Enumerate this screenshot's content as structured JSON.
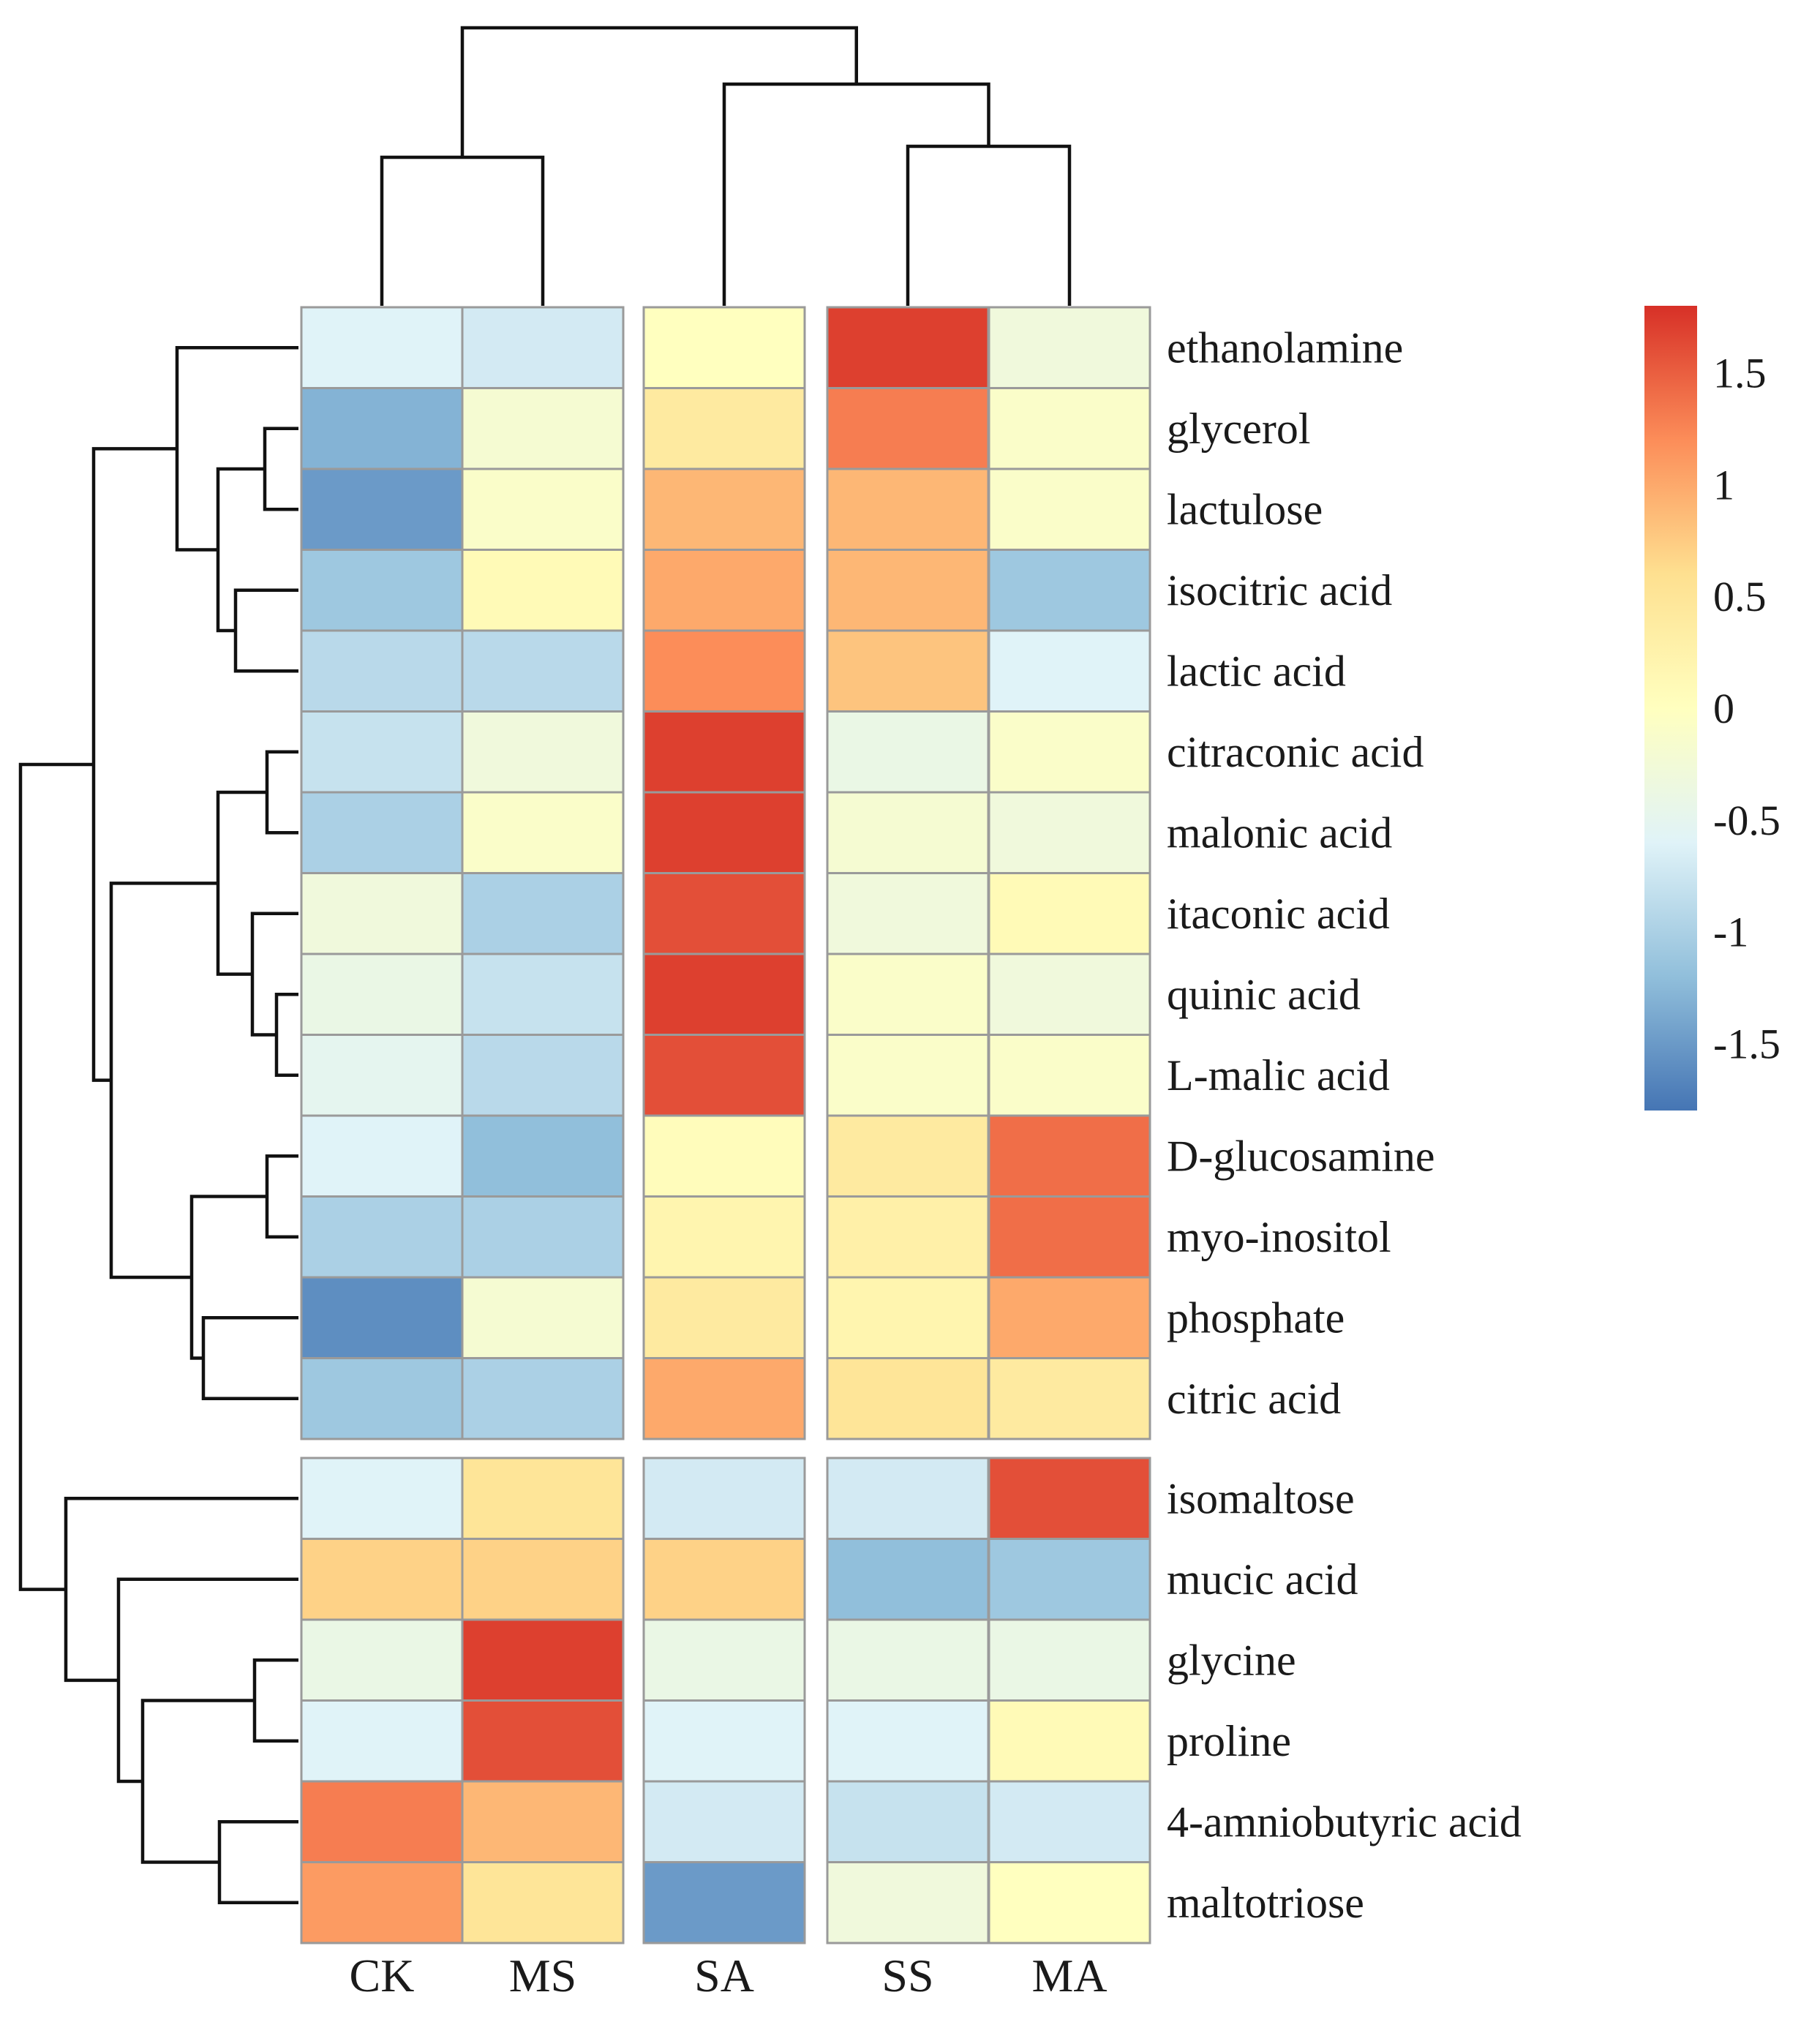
{
  "chart_data": {
    "type": "heatmap",
    "title": "",
    "columns": [
      "CK",
      "MS",
      "SA",
      "SS",
      "MA"
    ],
    "column_groups": [
      [
        "CK",
        "MS"
      ],
      [
        "SA"
      ],
      [
        "SS",
        "MA"
      ]
    ],
    "row_groups": [
      14,
      6
    ],
    "rows": [
      {
        "name": "ethanolamine",
        "values": [
          -0.6,
          -0.7,
          0.0,
          1.7,
          -0.3
        ]
      },
      {
        "name": "glycerol",
        "values": [
          -1.3,
          -0.2,
          0.4,
          1.3,
          -0.1
        ]
      },
      {
        "name": "lactulose",
        "values": [
          -1.5,
          -0.1,
          0.9,
          0.9,
          -0.1
        ]
      },
      {
        "name": "isocitric acid",
        "values": [
          -1.1,
          0.1,
          1.0,
          0.9,
          -1.1
        ]
      },
      {
        "name": "lactic acid",
        "values": [
          -0.9,
          -0.9,
          1.2,
          0.8,
          -0.6
        ]
      },
      {
        "name": "citraconic acid",
        "values": [
          -0.8,
          -0.3,
          1.7,
          -0.4,
          -0.1
        ]
      },
      {
        "name": "malonic acid",
        "values": [
          -1.0,
          -0.1,
          1.7,
          -0.2,
          -0.3
        ]
      },
      {
        "name": "itaconic acid",
        "values": [
          -0.3,
          -1.0,
          1.6,
          -0.3,
          0.1
        ]
      },
      {
        "name": "quinic acid",
        "values": [
          -0.4,
          -0.8,
          1.7,
          -0.1,
          -0.3
        ]
      },
      {
        "name": "L-malic acid",
        "values": [
          -0.5,
          -0.9,
          1.6,
          -0.1,
          -0.1
        ]
      },
      {
        "name": "D-glucosamine",
        "values": [
          -0.6,
          -1.2,
          0.05,
          0.4,
          1.4
        ]
      },
      {
        "name": "myo-inositol",
        "values": [
          -1.0,
          -1.0,
          0.2,
          0.3,
          1.4
        ]
      },
      {
        "name": "phosphate",
        "values": [
          -1.6,
          -0.2,
          0.4,
          0.2,
          1.0
        ]
      },
      {
        "name": "citric acid",
        "values": [
          -1.1,
          -1.0,
          1.0,
          0.5,
          0.4
        ]
      },
      {
        "name": "isomaltose",
        "values": [
          -0.6,
          0.5,
          -0.7,
          -0.7,
          1.6
        ]
      },
      {
        "name": "mucic acid",
        "values": [
          0.7,
          0.7,
          0.7,
          -1.2,
          -1.1
        ]
      },
      {
        "name": "glycine",
        "values": [
          -0.4,
          1.7,
          -0.4,
          -0.4,
          -0.4
        ]
      },
      {
        "name": "proline",
        "values": [
          -0.6,
          1.6,
          -0.6,
          -0.6,
          0.1
        ]
      },
      {
        "name": "4-amniobutyric acid",
        "values": [
          1.3,
          0.9,
          -0.7,
          -0.8,
          -0.7
        ]
      },
      {
        "name": "maltotriose",
        "values": [
          1.1,
          0.5,
          -1.5,
          -0.3,
          0.0
        ]
      }
    ],
    "colorbar": {
      "min": -1.8,
      "max": 1.8,
      "ticks": [
        1.5,
        1,
        0.5,
        0,
        -0.5,
        -1,
        -1.5
      ],
      "tick_labels": [
        "1.5",
        "1",
        "0.5",
        "0",
        "-0.5",
        "-1",
        "-1.5"
      ],
      "colors": [
        "#4575b4",
        "#91bfdb",
        "#e0f3f8",
        "#ffffbf",
        "#fee090",
        "#fc8d59",
        "#d73027"
      ]
    }
  }
}
